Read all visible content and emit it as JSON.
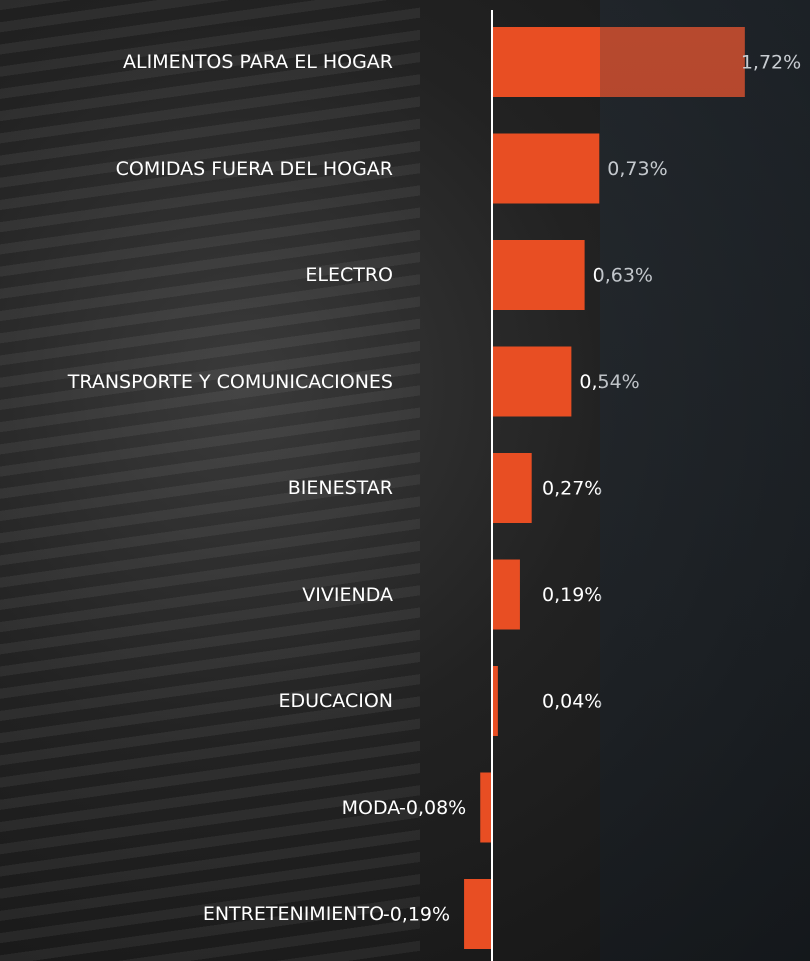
{
  "chart_data": {
    "type": "bar",
    "orientation": "horizontal",
    "categories": [
      "ALIMENTOS PARA EL HOGAR",
      "COMIDAS FUERA DEL HOGAR",
      "ELECTRO",
      "TRANSPORTE Y COMUNICACIONES",
      "BIENESTAR",
      "VIVIENDA",
      "EDUCACION",
      "MODA",
      "ENTRETENIMIENTO"
    ],
    "values": [
      1.72,
      0.73,
      0.63,
      0.54,
      0.27,
      0.19,
      0.04,
      -0.08,
      -0.19
    ],
    "value_labels": [
      "1,72%",
      "0,73%",
      "0,63%",
      "0,54%",
      "0,27%",
      "0,19%",
      "0,04%",
      "-0,08%",
      "-0,19%"
    ],
    "color": "#e84e23"
  }
}
